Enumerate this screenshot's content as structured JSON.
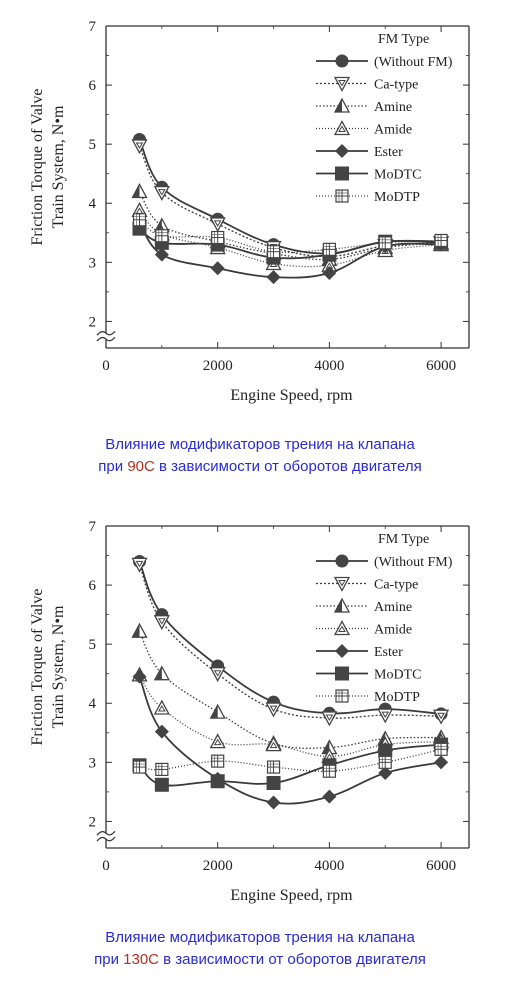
{
  "chart_data": [
    {
      "type": "line",
      "title": "",
      "xlabel": "Engine Speed, rpm",
      "ylabel": [
        "Friction Torque of Valve",
        "Train System, N•m"
      ],
      "xlim": [
        0,
        6500
      ],
      "ylim": [
        1.55,
        7
      ],
      "x_ticks": [
        0,
        2000,
        4000,
        6000
      ],
      "y_ticks": [
        2,
        3,
        4,
        5,
        6,
        7
      ],
      "axis_break": true,
      "legend": {
        "title": [
          "FM Type",
          "(Without FM)"
        ],
        "placement": "top-right"
      },
      "x": [
        600,
        1000,
        2000,
        3000,
        4000,
        5000,
        6000
      ],
      "series": [
        {
          "name": "(Without FM)",
          "marker": "circle",
          "dash": "",
          "values": [
            5.08,
            4.27,
            3.73,
            3.3,
            3.15,
            3.35,
            3.35
          ]
        },
        {
          "name": "Ca-type",
          "marker": "triangle-down",
          "dash": "2,2",
          "values": [
            4.97,
            4.18,
            3.65,
            3.25,
            3.1,
            3.28,
            3.33
          ]
        },
        {
          "name": "Amine",
          "marker": "triangle-half",
          "dash": "1.5,2",
          "values": [
            4.2,
            3.62,
            3.35,
            3.15,
            3.05,
            3.25,
            3.33
          ]
        },
        {
          "name": "Amide",
          "marker": "triangle-up",
          "dash": "1,2",
          "values": [
            3.88,
            3.48,
            3.25,
            2.98,
            2.95,
            3.2,
            3.3
          ]
        },
        {
          "name": "Ester",
          "marker": "diamond",
          "dash": "",
          "values": [
            3.68,
            3.13,
            2.9,
            2.75,
            2.82,
            3.27,
            3.3
          ]
        },
        {
          "name": "MoDTC",
          "marker": "square",
          "dash": "",
          "values": [
            3.57,
            3.33,
            3.3,
            3.08,
            3.13,
            3.35,
            3.33
          ]
        },
        {
          "name": "MoDTP",
          "marker": "square-grid",
          "dash": "1,2",
          "values": [
            3.72,
            3.45,
            3.42,
            3.18,
            3.22,
            3.33,
            3.37
          ]
        }
      ],
      "caption": {
        "pre": "Влияние модификаторов трения на клапана",
        "line2_pre": "при ",
        "temp": "90C",
        "line2_post": " в зависимости от оборотов двигателя"
      }
    },
    {
      "type": "line",
      "title": "",
      "xlabel": "Engine Speed, rpm",
      "ylabel": [
        "Friction Torque of Valve",
        "Train System, N•m"
      ],
      "xlim": [
        0,
        6500
      ],
      "ylim": [
        1.55,
        7
      ],
      "x_ticks": [
        0,
        2000,
        4000,
        6000
      ],
      "y_ticks": [
        2,
        3,
        4,
        5,
        6,
        7
      ],
      "axis_break": true,
      "legend": {
        "title": [
          "FM Type",
          "(Without FM)"
        ],
        "placement": "top-right"
      },
      "x": [
        600,
        1000,
        2000,
        3000,
        4000,
        5000,
        6000
      ],
      "series": [
        {
          "name": "(Without FM)",
          "marker": "circle",
          "dash": "",
          "values": [
            6.4,
            5.5,
            4.63,
            4.02,
            3.83,
            3.9,
            3.82
          ]
        },
        {
          "name": "Ca-type",
          "marker": "triangle-down",
          "dash": "2,2",
          "values": [
            6.35,
            5.38,
            4.5,
            3.9,
            3.75,
            3.8,
            3.78
          ]
        },
        {
          "name": "Amine",
          "marker": "triangle-half",
          "dash": "1.5,2",
          "values": [
            5.22,
            4.5,
            3.85,
            3.32,
            3.25,
            3.4,
            3.42
          ]
        },
        {
          "name": "Amide",
          "marker": "triangle-up",
          "dash": "1,2",
          "values": [
            4.48,
            3.92,
            3.35,
            3.3,
            3.1,
            3.3,
            3.35
          ]
        },
        {
          "name": "Ester",
          "marker": "diamond",
          "dash": "",
          "values": [
            4.45,
            3.52,
            2.72,
            2.32,
            2.42,
            2.82,
            3.0
          ]
        },
        {
          "name": "MoDTC",
          "marker": "square",
          "dash": "",
          "values": [
            2.95,
            2.62,
            2.68,
            2.65,
            2.95,
            3.2,
            3.3
          ]
        },
        {
          "name": "MoDTP",
          "marker": "square-grid",
          "dash": "1,2",
          "values": [
            2.92,
            2.88,
            3.02,
            2.92,
            2.85,
            3.0,
            3.22
          ]
        }
      ],
      "caption": {
        "pre": "Влияние модификаторов трения на клапана",
        "line2_pre": "при ",
        "temp": "130C",
        "line2_post": " в зависимости от оборотов двигателя"
      }
    }
  ],
  "colors": {
    "line": "#3a3a3a",
    "marker_fill": "#444444",
    "caption_text": "#2b2bd6",
    "caption_temp": "#b0301e"
  }
}
